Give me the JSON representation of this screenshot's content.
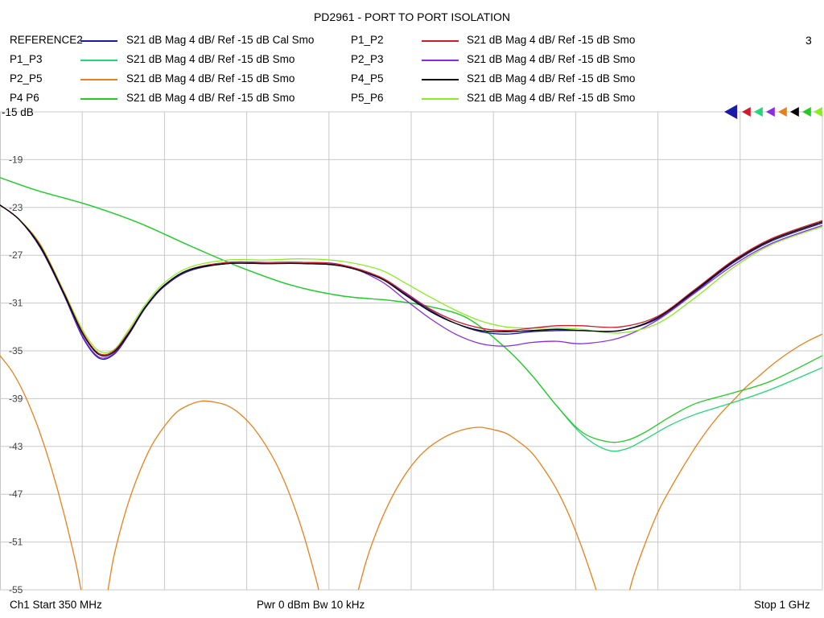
{
  "title": "PD2961 - PORT TO PORT ISOLATION",
  "page_number": "3",
  "legend": [
    {
      "name": "REFERENCE2",
      "desc": "S21  dB Mag  4 dB/ Ref -15 dB  Cal Smo",
      "color": "#1a1aa6"
    },
    {
      "name": "P1_P2",
      "desc": "S21  dB Mag  4 dB/ Ref -15 dB  Smo",
      "color": "#d11a2a"
    },
    {
      "name": "P1_P3",
      "desc": "S21  dB Mag  4 dB/ Ref -15 dB  Smo",
      "color": "#22d67a"
    },
    {
      "name": "P2_P3",
      "desc": "S21  dB Mag  4 dB/ Ref -15 dB  Smo",
      "color": "#8a2be2"
    },
    {
      "name": "P2_P5",
      "desc": "S21  dB Mag  4 dB/ Ref -15 dB  Smo",
      "color": "#e8801a"
    },
    {
      "name": "P4_P5",
      "desc": "S21  dB Mag  4 dB/ Ref -15 dB  Smo",
      "color": "#000000"
    },
    {
      "name": "P4  P6",
      "desc": "S21  dB Mag  4 dB/ Ref -15 dB  Smo",
      "color": "#22cc22"
    },
    {
      "name": "P5_P6",
      "desc": "S21  dB Mag  4 dB/ Ref -15 dB  Smo",
      "color": "#88ee22"
    }
  ],
  "footer": {
    "start": "Ch1  Start  350 MHz",
    "power": "Pwr  0 dBm  Bw  10 kHz",
    "stop": "Stop  1 GHz"
  },
  "chart_data": {
    "type": "line",
    "ref_label": "-15 dB",
    "ylim": [
      -55,
      -15
    ],
    "y_ticks": [
      -19,
      -23,
      -27,
      -31,
      -35,
      -39,
      -43,
      -47,
      -51,
      -55
    ],
    "x_unit": "MHz",
    "xlim": [
      350,
      1000
    ],
    "grid": true,
    "series": [
      {
        "name": "REFERENCE2",
        "color": "#1a1aa6",
        "x": [
          350,
          365,
          382,
          400,
          415,
          428,
          440,
          452,
          465,
          480,
          500,
          530,
          560,
          590,
          620,
          650,
          670,
          690,
          710,
          730,
          750,
          770,
          790,
          810,
          840,
          870,
          900,
          930,
          960,
          1000
        ],
        "y": [
          -22.8,
          -24.0,
          -26.4,
          -30.2,
          -33.8,
          -35.6,
          -35.3,
          -33.6,
          -31.4,
          -29.6,
          -28.3,
          -27.7,
          -27.7,
          -27.7,
          -27.9,
          -28.9,
          -30.2,
          -31.6,
          -32.7,
          -33.4,
          -33.6,
          -33.4,
          -33.3,
          -33.3,
          -33.3,
          -32.3,
          -30.0,
          -27.6,
          -25.8,
          -24.3
        ]
      },
      {
        "name": "P1_P2",
        "color": "#d11a2a",
        "x": [
          350,
          365,
          382,
          400,
          415,
          428,
          440,
          452,
          465,
          480,
          500,
          530,
          560,
          590,
          620,
          650,
          670,
          690,
          710,
          730,
          750,
          770,
          790,
          810,
          840,
          870,
          900,
          930,
          960,
          1000
        ],
        "y": [
          -22.8,
          -24.0,
          -26.2,
          -30.0,
          -33.4,
          -35.2,
          -35.0,
          -33.4,
          -31.3,
          -29.5,
          -28.2,
          -27.6,
          -27.6,
          -27.6,
          -27.8,
          -28.8,
          -30.1,
          -31.5,
          -32.5,
          -33.1,
          -33.3,
          -33.1,
          -32.9,
          -32.9,
          -33.0,
          -32.1,
          -29.8,
          -27.4,
          -25.6,
          -24.1
        ]
      },
      {
        "name": "P1_P3",
        "color": "#22d67a",
        "x": [
          350,
          380,
          420,
          460,
          500,
          540,
          580,
          620,
          660,
          690,
          720,
          750,
          770,
          790,
          810,
          830,
          845,
          860,
          880,
          900,
          930,
          960,
          1000
        ],
        "y": [
          -20.5,
          -21.6,
          -22.8,
          -24.3,
          -26.2,
          -28.0,
          -29.5,
          -30.4,
          -30.8,
          -31.3,
          -32.3,
          -34.8,
          -37.0,
          -39.6,
          -42.0,
          -43.3,
          -43.2,
          -42.4,
          -41.2,
          -40.3,
          -39.3,
          -38.2,
          -36.4
        ]
      },
      {
        "name": "P2_P3",
        "color": "#8a2be2",
        "x": [
          350,
          365,
          382,
          400,
          415,
          428,
          440,
          452,
          465,
          480,
          500,
          530,
          560,
          590,
          620,
          650,
          670,
          690,
          710,
          730,
          750,
          770,
          790,
          810,
          840,
          870,
          900,
          930,
          960,
          1000
        ],
        "y": [
          -22.8,
          -24.0,
          -26.3,
          -30.1,
          -33.7,
          -35.5,
          -35.2,
          -33.5,
          -31.3,
          -29.5,
          -28.2,
          -27.6,
          -27.6,
          -27.6,
          -27.8,
          -29.1,
          -30.7,
          -32.3,
          -33.6,
          -34.4,
          -34.6,
          -34.3,
          -34.2,
          -34.4,
          -33.9,
          -32.4,
          -30.1,
          -27.8,
          -26.0,
          -24.5
        ]
      },
      {
        "name": "P2_P5",
        "color": "#e8801a",
        "x": [
          350,
          360,
          370,
          380,
          390,
          400,
          410,
          420,
          430,
          440,
          450,
          460,
          470,
          480,
          490,
          500,
          510,
          520,
          530,
          540,
          550,
          560,
          570,
          580,
          590,
          600,
          610,
          620,
          630,
          640,
          650,
          660,
          670,
          680,
          690,
          700,
          710,
          720,
          730,
          740,
          750,
          760,
          770,
          780,
          790,
          800,
          810,
          820,
          830,
          840,
          850,
          860,
          870,
          880,
          890,
          900,
          910,
          920,
          930,
          940,
          950,
          960,
          970,
          980,
          990,
          1000
        ],
        "y": [
          -35.4,
          -36.8,
          -38.8,
          -41.4,
          -44.6,
          -48.4,
          -52.8,
          -57.8,
          -57.8,
          -52.2,
          -48.2,
          -45.2,
          -42.9,
          -41.3,
          -40.1,
          -39.5,
          -39.2,
          -39.3,
          -39.6,
          -40.3,
          -41.4,
          -42.9,
          -44.8,
          -47.3,
          -50.4,
          -54.2,
          -58.4,
          -59.0,
          -56.2,
          -52.4,
          -49.5,
          -47.2,
          -45.4,
          -44.0,
          -43.0,
          -42.3,
          -41.8,
          -41.5,
          -41.4,
          -41.6,
          -41.9,
          -42.6,
          -43.5,
          -44.9,
          -46.6,
          -48.8,
          -51.5,
          -54.6,
          -58.0,
          -58.0,
          -54.1,
          -51.1,
          -48.5,
          -46.5,
          -44.7,
          -43.0,
          -41.5,
          -40.2,
          -39.1,
          -38.0,
          -37.1,
          -36.2,
          -35.4,
          -34.7,
          -34.1,
          -33.6
        ]
      },
      {
        "name": "P4_P5",
        "color": "#000000",
        "x": [
          350,
          365,
          382,
          400,
          415,
          428,
          440,
          452,
          465,
          480,
          500,
          530,
          560,
          590,
          620,
          650,
          670,
          690,
          710,
          730,
          750,
          770,
          790,
          810,
          840,
          870,
          900,
          930,
          960,
          1000
        ],
        "y": [
          -22.8,
          -24.0,
          -26.3,
          -30.1,
          -33.5,
          -35.3,
          -35.1,
          -33.5,
          -31.3,
          -29.5,
          -28.2,
          -27.7,
          -27.7,
          -27.7,
          -27.9,
          -28.9,
          -30.3,
          -31.7,
          -32.7,
          -33.3,
          -33.4,
          -33.3,
          -33.2,
          -33.3,
          -33.3,
          -32.2,
          -29.9,
          -27.5,
          -25.7,
          -24.2
        ]
      },
      {
        "name": "P4  P6",
        "color": "#22cc22",
        "x": [
          350,
          380,
          420,
          460,
          500,
          540,
          580,
          620,
          660,
          690,
          720,
          750,
          770,
          790,
          810,
          830,
          845,
          860,
          880,
          900,
          930,
          960,
          1000
        ],
        "y": [
          -20.5,
          -21.6,
          -22.8,
          -24.3,
          -26.2,
          -28.0,
          -29.5,
          -30.4,
          -30.8,
          -31.3,
          -32.3,
          -34.8,
          -37.0,
          -39.6,
          -41.8,
          -42.6,
          -42.5,
          -41.8,
          -40.5,
          -39.4,
          -38.5,
          -37.5,
          -35.4
        ]
      },
      {
        "name": "P5_P6",
        "color": "#88ee22",
        "x": [
          350,
          365,
          382,
          400,
          415,
          428,
          440,
          452,
          465,
          480,
          500,
          530,
          560,
          590,
          620,
          650,
          670,
          690,
          710,
          730,
          750,
          770,
          790,
          810,
          840,
          870,
          900,
          930,
          960,
          1000
        ],
        "y": [
          -22.8,
          -24.0,
          -26.1,
          -29.9,
          -33.2,
          -35.0,
          -34.9,
          -33.2,
          -31.1,
          -29.3,
          -28.0,
          -27.4,
          -27.4,
          -27.3,
          -27.5,
          -28.2,
          -29.3,
          -30.5,
          -31.6,
          -32.5,
          -33.0,
          -33.1,
          -33.1,
          -33.2,
          -33.5,
          -32.7,
          -30.5,
          -28.0,
          -26.1,
          -24.6
        ]
      }
    ]
  }
}
